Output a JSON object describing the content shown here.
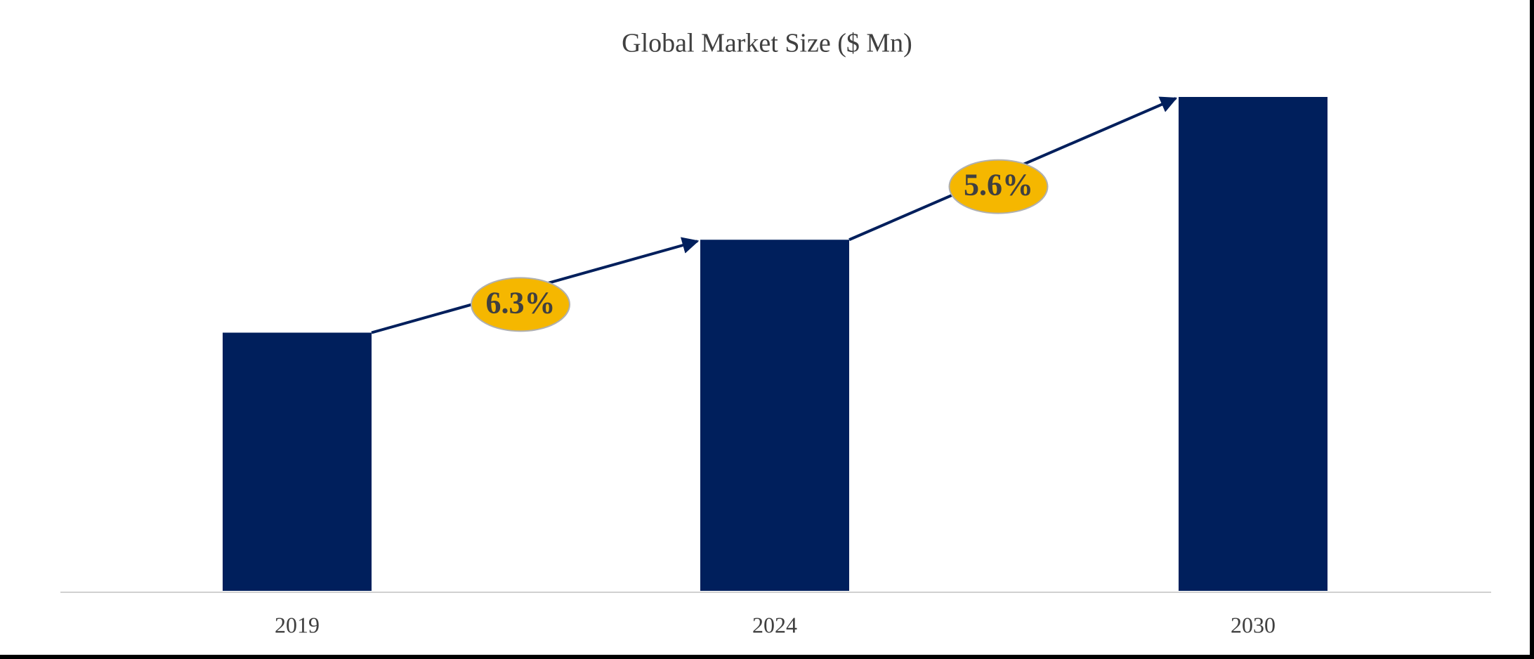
{
  "chart_data": {
    "type": "bar",
    "title": "Global Market Size ($ Mn)",
    "categories": [
      "2019",
      "2024",
      "2030"
    ],
    "values": [
      264,
      359,
      505
    ],
    "color": "#001f5c",
    "annotations": [
      {
        "text": "6.3%"
      },
      {
        "text": "5.6%"
      }
    ]
  }
}
